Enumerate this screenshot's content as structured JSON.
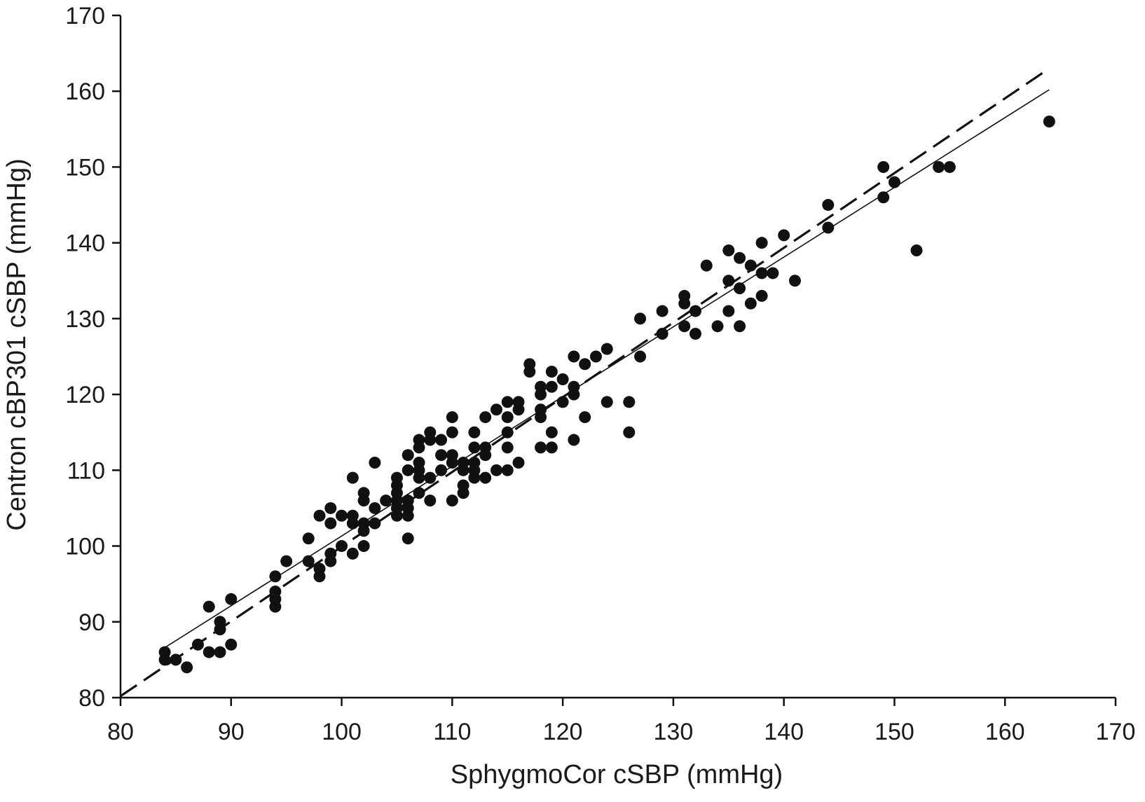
{
  "chart_data": {
    "type": "scatter",
    "title": "",
    "xlabel": "SphygmoCor cSBP (mmHg)",
    "ylabel": "Centron cBP301 cSBP (mmHg)",
    "xlim": [
      80,
      170
    ],
    "ylim": [
      80,
      170
    ],
    "xticks": [
      80,
      90,
      100,
      110,
      120,
      130,
      140,
      150,
      160,
      170
    ],
    "yticks": [
      80,
      90,
      100,
      110,
      120,
      130,
      140,
      150,
      160,
      170
    ],
    "xtick_labels": [
      "80",
      "90",
      "100",
      "110",
      "120",
      "130",
      "140",
      "150",
      "160",
      "170"
    ],
    "ytick_labels": [
      "80",
      "90",
      "100",
      "110",
      "120",
      "130",
      "140",
      "150",
      "160",
      "170"
    ],
    "grid": false,
    "legend": "none",
    "colors": {
      "points": "#111111",
      "lines": "#111111",
      "axes": "#111111"
    },
    "series": [
      {
        "type": "scatter",
        "points": [
          [
            84,
            86
          ],
          [
            84,
            85
          ],
          [
            85,
            85
          ],
          [
            86,
            84
          ],
          [
            87,
            87
          ],
          [
            88,
            92
          ],
          [
            88,
            86
          ],
          [
            89,
            90
          ],
          [
            89,
            89
          ],
          [
            89,
            86
          ],
          [
            90,
            93
          ],
          [
            90,
            87
          ],
          [
            94,
            96
          ],
          [
            94,
            94
          ],
          [
            94,
            93
          ],
          [
            94,
            92
          ],
          [
            95,
            98
          ],
          [
            97,
            101
          ],
          [
            97,
            98
          ],
          [
            98,
            104
          ],
          [
            98,
            97
          ],
          [
            98,
            96
          ],
          [
            99,
            105
          ],
          [
            99,
            103
          ],
          [
            99,
            99
          ],
          [
            99,
            98
          ],
          [
            100,
            104
          ],
          [
            100,
            100
          ],
          [
            101,
            109
          ],
          [
            101,
            104
          ],
          [
            101,
            103
          ],
          [
            101,
            99
          ],
          [
            102,
            107
          ],
          [
            102,
            106
          ],
          [
            102,
            103
          ],
          [
            102,
            102
          ],
          [
            102,
            100
          ],
          [
            103,
            111
          ],
          [
            103,
            105
          ],
          [
            103,
            103
          ],
          [
            104,
            106
          ],
          [
            105,
            109
          ],
          [
            105,
            108
          ],
          [
            105,
            107
          ],
          [
            105,
            106
          ],
          [
            105,
            105
          ],
          [
            105,
            104
          ],
          [
            106,
            112
          ],
          [
            106,
            110
          ],
          [
            106,
            106
          ],
          [
            106,
            105
          ],
          [
            106,
            104
          ],
          [
            106,
            101
          ],
          [
            107,
            114
          ],
          [
            107,
            113
          ],
          [
            107,
            111
          ],
          [
            107,
            110
          ],
          [
            107,
            109
          ],
          [
            107,
            107
          ],
          [
            108,
            115
          ],
          [
            108,
            114
          ],
          [
            108,
            109
          ],
          [
            108,
            106
          ],
          [
            109,
            114
          ],
          [
            109,
            112
          ],
          [
            109,
            110
          ],
          [
            110,
            117
          ],
          [
            110,
            115
          ],
          [
            110,
            112
          ],
          [
            110,
            111
          ],
          [
            110,
            106
          ],
          [
            111,
            111
          ],
          [
            111,
            110
          ],
          [
            111,
            108
          ],
          [
            111,
            107
          ],
          [
            112,
            115
          ],
          [
            112,
            113
          ],
          [
            112,
            111
          ],
          [
            112,
            110
          ],
          [
            112,
            109
          ],
          [
            113,
            117
          ],
          [
            113,
            113
          ],
          [
            113,
            112
          ],
          [
            113,
            109
          ],
          [
            114,
            118
          ],
          [
            114,
            110
          ],
          [
            115,
            119
          ],
          [
            115,
            117
          ],
          [
            115,
            115
          ],
          [
            115,
            113
          ],
          [
            115,
            110
          ],
          [
            116,
            119
          ],
          [
            116,
            118
          ],
          [
            116,
            111
          ],
          [
            117,
            124
          ],
          [
            117,
            123
          ],
          [
            118,
            121
          ],
          [
            118,
            120
          ],
          [
            118,
            118
          ],
          [
            118,
            117
          ],
          [
            118,
            113
          ],
          [
            119,
            123
          ],
          [
            119,
            121
          ],
          [
            119,
            115
          ],
          [
            119,
            113
          ],
          [
            120,
            122
          ],
          [
            120,
            119
          ],
          [
            121,
            125
          ],
          [
            121,
            121
          ],
          [
            121,
            120
          ],
          [
            121,
            114
          ],
          [
            122,
            124
          ],
          [
            122,
            117
          ],
          [
            123,
            125
          ],
          [
            124,
            126
          ],
          [
            124,
            119
          ],
          [
            126,
            119
          ],
          [
            126,
            115
          ],
          [
            127,
            130
          ],
          [
            127,
            125
          ],
          [
            129,
            131
          ],
          [
            129,
            128
          ],
          [
            131,
            133
          ],
          [
            131,
            132
          ],
          [
            131,
            129
          ],
          [
            132,
            131
          ],
          [
            132,
            128
          ],
          [
            133,
            137
          ],
          [
            134,
            129
          ],
          [
            135,
            139
          ],
          [
            135,
            135
          ],
          [
            135,
            131
          ],
          [
            136,
            138
          ],
          [
            136,
            134
          ],
          [
            136,
            129
          ],
          [
            137,
            137
          ],
          [
            137,
            132
          ],
          [
            138,
            140
          ],
          [
            138,
            136
          ],
          [
            138,
            133
          ],
          [
            139,
            136
          ],
          [
            140,
            141
          ],
          [
            141,
            135
          ],
          [
            144,
            145
          ],
          [
            144,
            142
          ],
          [
            149,
            150
          ],
          [
            149,
            146
          ],
          [
            150,
            148
          ],
          [
            152,
            139
          ],
          [
            154,
            150
          ],
          [
            155,
            150
          ],
          [
            164,
            156
          ]
        ]
      },
      {
        "type": "line",
        "style": "dashed",
        "x": [
          80,
          164
        ],
        "y": [
          80.2,
          163
        ]
      },
      {
        "type": "line",
        "style": "solid",
        "x": [
          84,
          164
        ],
        "y": [
          86.6,
          160.2
        ]
      }
    ]
  }
}
